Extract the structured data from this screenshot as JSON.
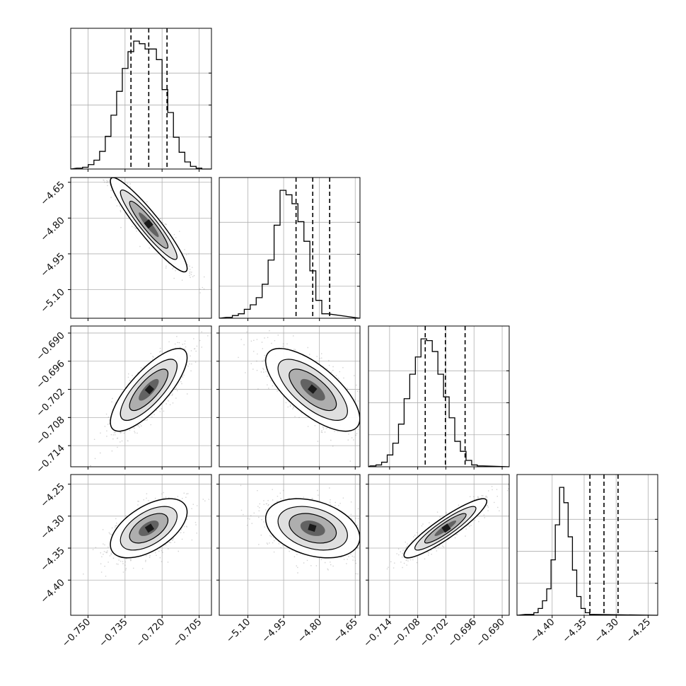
{
  "chart_data": {
    "type": "corner",
    "parameter_ranges": [
      [
        -0.757,
        -0.7
      ],
      [
        -5.22,
        -4.63
      ],
      [
        -0.7185,
        -0.6885
      ],
      [
        -4.455,
        -4.235
      ]
    ],
    "tick_labels": [
      [
        "−0.750",
        "−0.735",
        "−0.720",
        "−0.705"
      ],
      [
        "−5.10",
        "−4.95",
        "−4.80",
        "−4.65"
      ],
      [
        "−0.714",
        "−0.708",
        "−0.702",
        "−0.696",
        "−0.690"
      ],
      [
        "−4.40",
        "−4.35",
        "−4.30",
        "−4.25"
      ]
    ],
    "tick_values": [
      [
        -0.75,
        -0.735,
        -0.72,
        -0.705
      ],
      [
        -5.1,
        -4.95,
        -4.8,
        -4.65
      ],
      [
        -0.714,
        -0.708,
        -0.702,
        -0.696,
        -0.69
      ],
      [
        -4.4,
        -4.35,
        -4.3,
        -4.25
      ]
    ],
    "quantiles": [
      [
        -0.7326,
        -0.7254,
        -0.718
      ],
      [
        -4.898,
        -4.828,
        -4.757
      ],
      [
        -0.7064,
        -0.7021,
        -0.6979
      ],
      [
        -4.341,
        -4.319,
        -4.297
      ]
    ],
    "histograms": [
      {
        "bin_start": -0.7545,
        "bin_width": 0.0023,
        "counts": [
          1,
          2,
          5,
          10,
          20,
          37,
          61,
          88,
          114,
          133,
          145,
          142,
          136,
          136,
          124,
          90,
          64,
          36,
          19,
          8,
          3,
          1,
          0
        ]
      },
      {
        "bin_start": -5.19,
        "bin_width": 0.025,
        "counts": [
          1,
          3,
          5,
          10,
          15,
          23,
          38,
          65,
          104,
          143,
          138,
          128,
          108,
          86,
          53,
          20,
          5
        ]
      },
      {
        "bin_start": -0.7181,
        "bin_width": 0.0012,
        "counts": [
          1,
          2,
          5,
          13,
          26,
          47,
          75,
          102,
          121,
          141,
          139,
          127,
          102,
          77,
          54,
          28,
          17,
          7,
          2,
          1
        ]
      },
      {
        "bin_start": -4.442,
        "bin_width": 0.0067,
        "counts": [
          1,
          1,
          3,
          8,
          17,
          31,
          65,
          106,
          150,
          132,
          92,
          53,
          22,
          8,
          3,
          1
        ]
      }
    ],
    "pairs": [
      {
        "row": 1,
        "col": 0,
        "mean": [
          -0.7254,
          -4.828
        ],
        "sd": [
          0.0074,
          0.094
        ],
        "corr": -0.93
      },
      {
        "row": 2,
        "col": 0,
        "mean": [
          -0.7254,
          -0.7021
        ],
        "sd": [
          0.0074,
          0.0042
        ],
        "corr": 0.78
      },
      {
        "row": 2,
        "col": 1,
        "mean": [
          -4.828,
          -0.7021
        ],
        "sd": [
          0.094,
          0.0042
        ],
        "corr": -0.7
      },
      {
        "row": 3,
        "col": 0,
        "mean": [
          -0.7254,
          -4.319
        ],
        "sd": [
          0.0074,
          0.022
        ],
        "corr": 0.55
      },
      {
        "row": 3,
        "col": 1,
        "mean": [
          -4.828,
          -4.319
        ],
        "sd": [
          0.094,
          0.022
        ],
        "corr": -0.32
      },
      {
        "row": 3,
        "col": 2,
        "mean": [
          -0.7021,
          -4.319
        ],
        "sd": [
          0.0042,
          0.022
        ],
        "corr": 0.91
      }
    ],
    "grid": true,
    "colors": {
      "line": "#000000",
      "scatter": "#7f7f7f",
      "grid": "#b0b0b0",
      "background": "#ffffff"
    }
  }
}
